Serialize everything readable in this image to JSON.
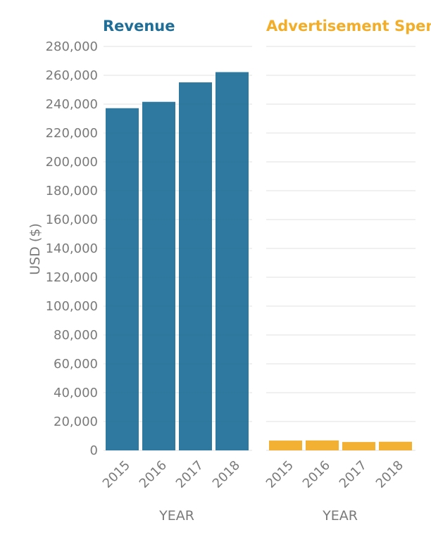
{
  "chart_data": [
    {
      "type": "bar",
      "title": "Revenue",
      "color": "#1f6e98",
      "categories": [
        "2015",
        "2016",
        "2017",
        "2018"
      ],
      "values": [
        237200,
        241600,
        255100,
        262200
      ],
      "xlabel": "YEAR",
      "ylabel": "USD ($)",
      "ylim": [
        0,
        280000
      ],
      "yticks": [
        "0",
        "20,000",
        "40,000",
        "60,000",
        "80,000",
        "100,000",
        "120,000",
        "140,000",
        "160,000",
        "180,000",
        "200,000",
        "220,000",
        "240,000",
        "260,000",
        "280,000"
      ],
      "grid": true
    },
    {
      "type": "bar",
      "title": "Advertisement Spen",
      "color": "#f2ad29",
      "categories": [
        "2015",
        "2016",
        "2017",
        "2018"
      ],
      "values": [
        6800,
        6900,
        5800,
        6000
      ],
      "xlabel": "YEAR",
      "ylim": [
        0,
        280000
      ],
      "grid": true
    }
  ]
}
